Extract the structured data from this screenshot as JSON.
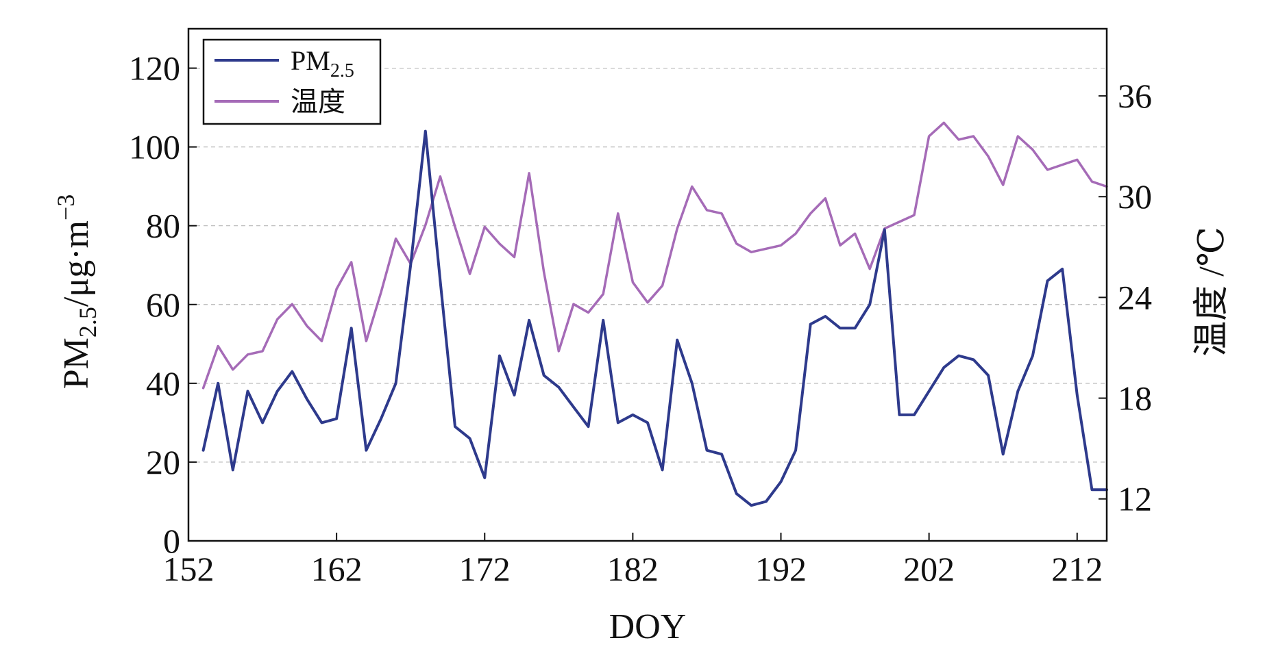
{
  "chart_data": {
    "type": "line",
    "xlabel": "DOY",
    "ylabel": "PM2.5/μg·m−3",
    "ylabel_parts": {
      "main": "PM",
      "sub": "2.5",
      "unit": "/μg·m",
      "sup": "−3"
    },
    "y2label": "温度 /℃",
    "xlim": [
      152,
      214
    ],
    "ylim": [
      0,
      130
    ],
    "y2lim": [
      9.5,
      40
    ],
    "xticks": [
      152,
      162,
      172,
      182,
      192,
      202,
      212
    ],
    "yticks": [
      0,
      20,
      40,
      60,
      80,
      100,
      120
    ],
    "y2ticks": [
      12,
      18,
      24,
      30,
      36
    ],
    "grid": true,
    "legend_position": "top-left",
    "legend": [
      {
        "main": "PM",
        "sub": "2.5"
      },
      {
        "main": "温度",
        "sub": ""
      }
    ],
    "colors": {
      "pm25": "#2e3a8c",
      "temp": "#a56bb7"
    },
    "x": [
      153,
      154,
      155,
      156,
      157,
      158,
      159,
      160,
      161,
      162,
      163,
      164,
      165,
      166,
      167,
      168,
      169,
      170,
      171,
      172,
      173,
      174,
      175,
      176,
      177,
      178,
      179,
      180,
      181,
      182,
      183,
      184,
      185,
      186,
      187,
      188,
      189,
      190,
      191,
      192,
      193,
      194,
      195,
      196,
      197,
      198,
      199,
      200,
      201,
      202,
      203,
      204,
      205,
      206,
      207,
      208,
      209,
      210,
      211,
      212,
      213,
      214
    ],
    "series": [
      {
        "name": "PM2.5",
        "axis": "left",
        "values": [
          23,
          40,
          18,
          38,
          30,
          38,
          43,
          36,
          30,
          31,
          54,
          23,
          31,
          40,
          70,
          104,
          66,
          29,
          26,
          16,
          47,
          37,
          56,
          42,
          39,
          34,
          29,
          56,
          30,
          32,
          30,
          18,
          51,
          40,
          23,
          22,
          12,
          9,
          10,
          15,
          23,
          55,
          57,
          54,
          54,
          60,
          79,
          32,
          32,
          38,
          44,
          47,
          46,
          42,
          22,
          38,
          47,
          66,
          69,
          37,
          13,
          13
        ]
      },
      {
        "name": "温度",
        "axis": "right",
        "values": [
          18.6,
          21.1,
          19.7,
          20.6,
          20.8,
          22.7,
          23.6,
          22.3,
          21.4,
          24.5,
          26.1,
          21.4,
          24.3,
          27.5,
          26.0,
          28.3,
          31.2,
          28.2,
          25.4,
          28.2,
          27.2,
          26.4,
          31.4,
          25.5,
          20.8,
          23.6,
          23.1,
          24.2,
          29.0,
          24.9,
          23.7,
          24.7,
          28.1,
          30.6,
          29.2,
          29.0,
          27.2,
          26.7,
          26.9,
          27.1,
          27.8,
          29.0,
          29.9,
          27.1,
          27.8,
          25.7,
          28.1,
          28.5,
          28.9,
          33.6,
          34.4,
          33.4,
          33.6,
          32.4,
          30.7,
          33.6,
          32.8,
          31.6,
          31.9,
          32.2,
          30.9,
          30.6
        ]
      }
    ]
  }
}
